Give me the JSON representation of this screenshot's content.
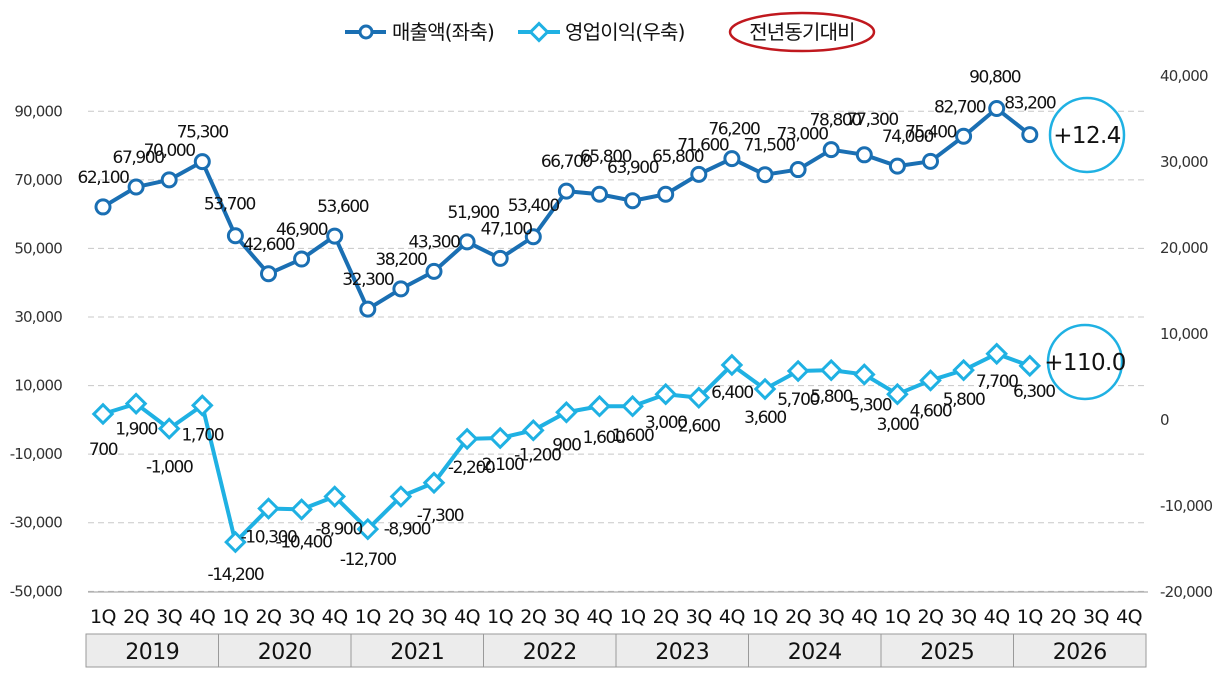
{
  "chart_data": {
    "type": "line",
    "legend": {
      "position": "top-center",
      "items": [
        "매출액(좌축)",
        "영업이익(우축)",
        "전년동기대비"
      ]
    },
    "grid": true,
    "y_left": {
      "ticks": [
        "90,000",
        "70,000",
        "50,000",
        "30,000",
        "10,000",
        "-10,000",
        "-30,000",
        "-50,000"
      ],
      "tick_values": [
        90000,
        70000,
        50000,
        30000,
        10000,
        -10000,
        -30000,
        -50000
      ],
      "range": [
        -50000,
        110000
      ]
    },
    "y_right": {
      "ticks": [
        "40,000",
        "30,000",
        "20,000",
        "10,000",
        "0",
        "-10,000",
        "-20,000"
      ],
      "tick_values": [
        40000,
        30000,
        20000,
        10000,
        0,
        -10000,
        -20000
      ],
      "range": [
        -20000,
        40000
      ]
    },
    "x_quarters": [
      "1Q",
      "2Q",
      "3Q",
      "4Q",
      "1Q",
      "2Q",
      "3Q",
      "4Q",
      "1Q",
      "2Q",
      "3Q",
      "4Q",
      "1Q",
      "2Q",
      "3Q",
      "4Q",
      "1Q",
      "2Q",
      "3Q",
      "4Q",
      "1Q",
      "2Q",
      "3Q",
      "4Q",
      "1Q",
      "2Q",
      "3Q",
      "4Q",
      "1Q",
      "2Q",
      "3Q",
      "4Q"
    ],
    "x_years": [
      "2019",
      "2020",
      "2021",
      "2022",
      "2023",
      "2024",
      "2025",
      "2026"
    ],
    "series": [
      {
        "name": "매출액(좌축)",
        "axis": "left",
        "color": "#1a6fb3",
        "marker": "circle",
        "values": [
          62100,
          67900,
          70000,
          75300,
          53700,
          42600,
          46900,
          53600,
          32300,
          38200,
          43300,
          51900,
          47100,
          53400,
          66700,
          65800,
          63900,
          65800,
          71600,
          76200,
          71500,
          73000,
          78800,
          77300,
          74000,
          75400,
          82700,
          90800,
          83200
        ],
        "labels": [
          "62,100",
          "67,900",
          "70,000",
          "75,300",
          "53,700",
          "42,600",
          "46,900",
          "53,600",
          "32,300",
          "38,200",
          "43,300",
          "51,900",
          "47,100",
          "53,400",
          "66,700",
          "65,800",
          "63,900",
          "65,800",
          "71,600",
          "76,200",
          "71,500",
          "73,000",
          "78,800",
          "77,300",
          "74,000",
          "75,400",
          "82,700",
          "90,800",
          "83,200"
        ]
      },
      {
        "name": "영업이익(우축)",
        "axis": "right",
        "color": "#1fb1e3",
        "marker": "diamond",
        "values": [
          700,
          1900,
          -1000,
          1700,
          -14200,
          -10300,
          -10400,
          -8900,
          -12700,
          -8900,
          -7300,
          -2200,
          -2100,
          -1200,
          900,
          1600,
          1600,
          3000,
          2600,
          6400,
          3600,
          5700,
          5800,
          5300,
          3000,
          4600,
          5800,
          7700,
          6300
        ],
        "labels": [
          "700",
          "1,900",
          "-1,000",
          "1,700",
          "-14,200",
          "-10,300",
          "-10,400",
          "-8,900",
          "-12,700",
          "-8,900",
          "-7,300",
          "-2,200",
          "-2,100",
          "-1,200",
          "900",
          "1,600",
          "1,600",
          "3,000",
          "2,600",
          "6,400",
          "3,600",
          "5,700",
          "5,800",
          "5,300",
          "3,000",
          "4,600",
          "5,800",
          "7,700",
          "6,300"
        ]
      }
    ],
    "annotations": {
      "sales_yoy": "+12.4",
      "op_yoy": "+110.0"
    },
    "colors": {
      "sales": "#1a6fb3",
      "op": "#1fb1e3",
      "yoy_oval": "#c0181e",
      "year_box": "#ececec"
    }
  }
}
